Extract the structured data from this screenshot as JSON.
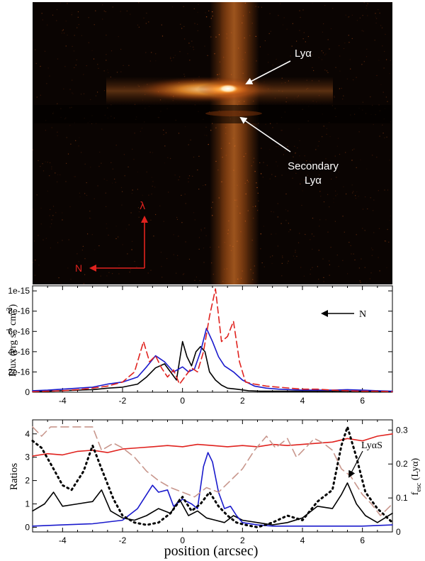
{
  "image_panel": {
    "label_lya": "Lyα",
    "label_secondary": "Secondary",
    "label_secondary_line2": "Lyα",
    "compass_lambda": "λ",
    "compass_n": "N",
    "colors": {
      "background": "#0a0402",
      "glow": "#ff9a2e",
      "core": "#fff3d0",
      "compass": "#e0221e",
      "arrow": "#ffffff"
    }
  },
  "chart_data": [
    {
      "type": "line",
      "panel": "flux",
      "ylabel": "Flux (erg s⁻¹ cm⁻²)",
      "ylabel_parts": [
        "Flux (erg s",
        "-1",
        " cm",
        "-2",
        ")"
      ],
      "xlim": [
        -5,
        7
      ],
      "ylim": [
        0,
        1.05e-15
      ],
      "x_ticks": [
        -4,
        -2,
        0,
        2,
        4,
        6
      ],
      "x_tick_labels": [
        "-4",
        "-2",
        "0",
        "2",
        "4",
        "6"
      ],
      "y_ticks": [
        0,
        2e-16,
        4e-16,
        6e-16,
        8e-16,
        1e-15
      ],
      "y_tick_labels": [
        "0",
        "2e-16",
        "4e-16",
        "6e-16",
        "8e-16",
        "1e-15"
      ],
      "annotation": "N",
      "series": [
        {
          "name": "black",
          "color": "#000000",
          "dash": "",
          "x": [
            -5,
            -4.5,
            -4,
            -3.5,
            -3,
            -2.5,
            -2,
            -1.5,
            -1.2,
            -0.9,
            -0.6,
            -0.4,
            -0.2,
            0,
            0.15,
            0.3,
            0.45,
            0.6,
            0.75,
            0.9,
            1.1,
            1.3,
            1.5,
            1.8,
            2.2,
            2.6,
            3,
            3.5,
            4,
            4.5,
            5,
            5.5,
            6,
            6.5,
            7
          ],
          "y": [
            1e-17,
            1e-17,
            1.5e-17,
            2e-17,
            2.5e-17,
            4e-17,
            5e-17,
            8e-17,
            1.5e-16,
            2.4e-16,
            2.8e-16,
            2e-16,
            1.2e-16,
            5e-16,
            3.5e-16,
            2.6e-16,
            4e-16,
            4.5e-16,
            4e-16,
            2e-16,
            1.2e-16,
            7e-17,
            4e-17,
            3e-17,
            1.5e-17,
            1e-17,
            1e-17,
            1e-17,
            1e-17,
            1e-17,
            1e-17,
            1e-17,
            1e-17,
            1e-17,
            5e-18
          ]
        },
        {
          "name": "blue",
          "color": "#1a1acc",
          "dash": "",
          "x": [
            -5,
            -4.5,
            -4,
            -3.5,
            -3,
            -2.5,
            -2,
            -1.5,
            -1.2,
            -0.9,
            -0.6,
            -0.3,
            0,
            0.2,
            0.4,
            0.6,
            0.8,
            1,
            1.2,
            1.4,
            1.7,
            2,
            2.4,
            2.8,
            3.2,
            3.6,
            4,
            4.5,
            5,
            5.5,
            6,
            6.5,
            7
          ],
          "y": [
            1.5e-17,
            2e-17,
            3e-17,
            4e-17,
            5e-17,
            8e-17,
            1e-16,
            1.5e-16,
            2.5e-16,
            3.6e-16,
            3e-16,
            2e-16,
            2.5e-16,
            2e-16,
            2.3e-16,
            4e-16,
            6.3e-16,
            5e-16,
            3.5e-16,
            2.6e-16,
            2e-16,
            1.2e-16,
            6e-17,
            4e-17,
            3e-17,
            2.5e-17,
            2e-17,
            2e-17,
            2e-17,
            2.5e-17,
            2e-17,
            1.5e-17,
            1e-17
          ]
        },
        {
          "name": "red-dashed",
          "color": "#e0221e",
          "dash": "9,5",
          "x": [
            -5,
            -4.5,
            -4,
            -3.5,
            -3,
            -2.5,
            -2,
            -1.6,
            -1.3,
            -1.1,
            -0.9,
            -0.7,
            -0.5,
            -0.3,
            -0.1,
            0.1,
            0.3,
            0.5,
            0.7,
            0.9,
            1.1,
            1.3,
            1.5,
            1.7,
            1.9,
            2.1,
            2.4,
            2.8,
            3.2,
            3.6,
            4,
            4.5,
            5,
            5.5,
            6,
            6.5,
            7
          ],
          "y": [
            5e-18,
            1e-17,
            1.5e-17,
            2.5e-17,
            4e-17,
            6e-17,
            1e-16,
            2e-16,
            5e-16,
            3e-16,
            3.6e-16,
            2.4e-16,
            1.5e-16,
            2.2e-16,
            8e-17,
            1.6e-16,
            2.4e-16,
            2e-16,
            4e-16,
            7.5e-16,
            1.02e-15,
            5e-16,
            5.5e-16,
            7e-16,
            3e-16,
            1e-16,
            8e-17,
            6e-17,
            5e-17,
            4e-17,
            3e-17,
            3e-17,
            2e-17,
            1.5e-17,
            1e-17,
            1e-17,
            5e-18
          ]
        }
      ]
    },
    {
      "type": "line",
      "panel": "ratios",
      "xlabel": "position (arcsec)",
      "ylabel": "Ratios",
      "ylabel_right": "fesc(Lyα)",
      "ylabel_right_parts": [
        "f",
        "esc",
        " (Lyα)"
      ],
      "xlim": [
        -5,
        7
      ],
      "ylim": [
        -0.2,
        4.6
      ],
      "ylim_right": [
        0,
        0.33
      ],
      "x_ticks": [
        -4,
        -2,
        0,
        2,
        4,
        6
      ],
      "x_tick_labels": [
        "-4",
        "-2",
        "0",
        "2",
        "4",
        "6"
      ],
      "y_ticks": [
        0,
        1,
        2,
        3,
        4
      ],
      "y_tick_labels": [
        "0",
        "1",
        "2",
        "3",
        "4"
      ],
      "y_ticks_right": [
        0,
        0.1,
        0.2,
        0.3
      ],
      "y_tick_labels_right": [
        "0",
        "0.1",
        "0.2",
        "0.3"
      ],
      "annotation": "LyαS",
      "series": [
        {
          "name": "red",
          "color": "#e0221e",
          "dash": "",
          "axis": "left",
          "x": [
            -5,
            -4.5,
            -4,
            -3.5,
            -3,
            -2.5,
            -2,
            -1.5,
            -1,
            -0.5,
            0,
            0.5,
            1,
            1.5,
            2,
            2.5,
            3,
            3.5,
            4,
            4.5,
            5,
            5.5,
            6,
            6.5,
            7
          ],
          "y": [
            3.05,
            3.15,
            3.1,
            3.25,
            3.3,
            3.2,
            3.35,
            3.4,
            3.45,
            3.5,
            3.45,
            3.55,
            3.5,
            3.45,
            3.5,
            3.45,
            3.55,
            3.5,
            3.55,
            3.6,
            3.65,
            3.8,
            3.7,
            3.9,
            4.0
          ]
        },
        {
          "name": "black",
          "color": "#000000",
          "dash": "",
          "axis": "left",
          "x": [
            -5,
            -4.6,
            -4.3,
            -4,
            -3.5,
            -3,
            -2.7,
            -2.4,
            -2,
            -1.6,
            -1.2,
            -0.8,
            -0.4,
            -0.1,
            0.2,
            0.5,
            0.8,
            1.1,
            1.4,
            1.7,
            2,
            2.5,
            3,
            3.5,
            4,
            4.5,
            5,
            5.3,
            5.5,
            5.8,
            6.1,
            6.5,
            7
          ],
          "y": [
            0.7,
            1.0,
            1.5,
            0.9,
            1.0,
            1.1,
            1.6,
            0.7,
            0.4,
            0.3,
            0.5,
            0.8,
            0.6,
            1.2,
            0.5,
            0.7,
            0.4,
            0.3,
            0.2,
            0.5,
            0.3,
            0.2,
            0.1,
            0.2,
            0.4,
            0.9,
            0.8,
            1.4,
            1.9,
            1.0,
            0.5,
            0.2,
            0.6
          ]
        },
        {
          "name": "blue",
          "color": "#1a1acc",
          "dash": "",
          "axis": "left",
          "x": [
            -5,
            -4,
            -3,
            -2,
            -1.5,
            -1,
            -0.8,
            -0.5,
            -0.3,
            0,
            0.3,
            0.5,
            0.7,
            0.85,
            1,
            1.2,
            1.4,
            1.6,
            1.8,
            2,
            2.5,
            3,
            4,
            5,
            6,
            7
          ],
          "y": [
            0.05,
            0.1,
            0.15,
            0.3,
            0.8,
            1.8,
            1.5,
            1.6,
            0.9,
            1.2,
            1.0,
            0.8,
            2.6,
            3.2,
            2.8,
            1.5,
            0.8,
            0.9,
            0.5,
            0.2,
            0.1,
            0.05,
            0.05,
            0.05,
            0.05,
            0.1
          ]
        },
        {
          "name": "black-dotted",
          "color": "#000000",
          "dash": "2,5",
          "axis": "left",
          "x": [
            -5,
            -4.7,
            -4.3,
            -4,
            -3.7,
            -3.3,
            -3,
            -2.7,
            -2.3,
            -2,
            -1.6,
            -1.2,
            -0.8,
            -0.4,
            0,
            0.3,
            0.6,
            0.9,
            1.2,
            1.5,
            1.8,
            2.1,
            2.5,
            3,
            3.5,
            4,
            4.5,
            5,
            5.3,
            5.5,
            5.8,
            6.1,
            6.5,
            7
          ],
          "y": [
            3.7,
            3.4,
            2.5,
            1.8,
            1.6,
            2.4,
            3.5,
            2.5,
            1.2,
            0.5,
            0.2,
            0.1,
            0.2,
            0.6,
            1.3,
            0.7,
            1.0,
            1.5,
            0.9,
            0.5,
            0.2,
            0.1,
            0.0,
            0.2,
            0.5,
            0.3,
            1.1,
            1.6,
            3.5,
            4.3,
            3.0,
            1.5,
            0.8,
            0.2
          ]
        },
        {
          "name": "brown-dashed",
          "color": "#c8968c",
          "dash": "11,6",
          "axis": "left",
          "x": [
            -5,
            -4.7,
            -4.4,
            -4,
            -3.5,
            -3,
            -2.7,
            -2.3,
            -2,
            -1.6,
            -1.2,
            -0.8,
            -0.4,
            0,
            0.4,
            0.8,
            1.2,
            1.6,
            2,
            2.4,
            2.8,
            3.1,
            3.5,
            3.8,
            4.1,
            4.4,
            4.7,
            5,
            5.3,
            5.6,
            6,
            6.3,
            6.6,
            7
          ],
          "y": [
            4.3,
            3.9,
            4.3,
            4.3,
            4.3,
            4.3,
            3.3,
            3.6,
            3.4,
            3.0,
            2.4,
            2.0,
            1.7,
            1.5,
            1.3,
            1.7,
            1.5,
            2.0,
            2.5,
            3.3,
            3.9,
            3.4,
            3.8,
            3.0,
            3.4,
            3.8,
            3.6,
            3.3,
            2.5,
            2.2,
            1.4,
            1.0,
            0.5,
            1.0
          ]
        }
      ]
    }
  ]
}
